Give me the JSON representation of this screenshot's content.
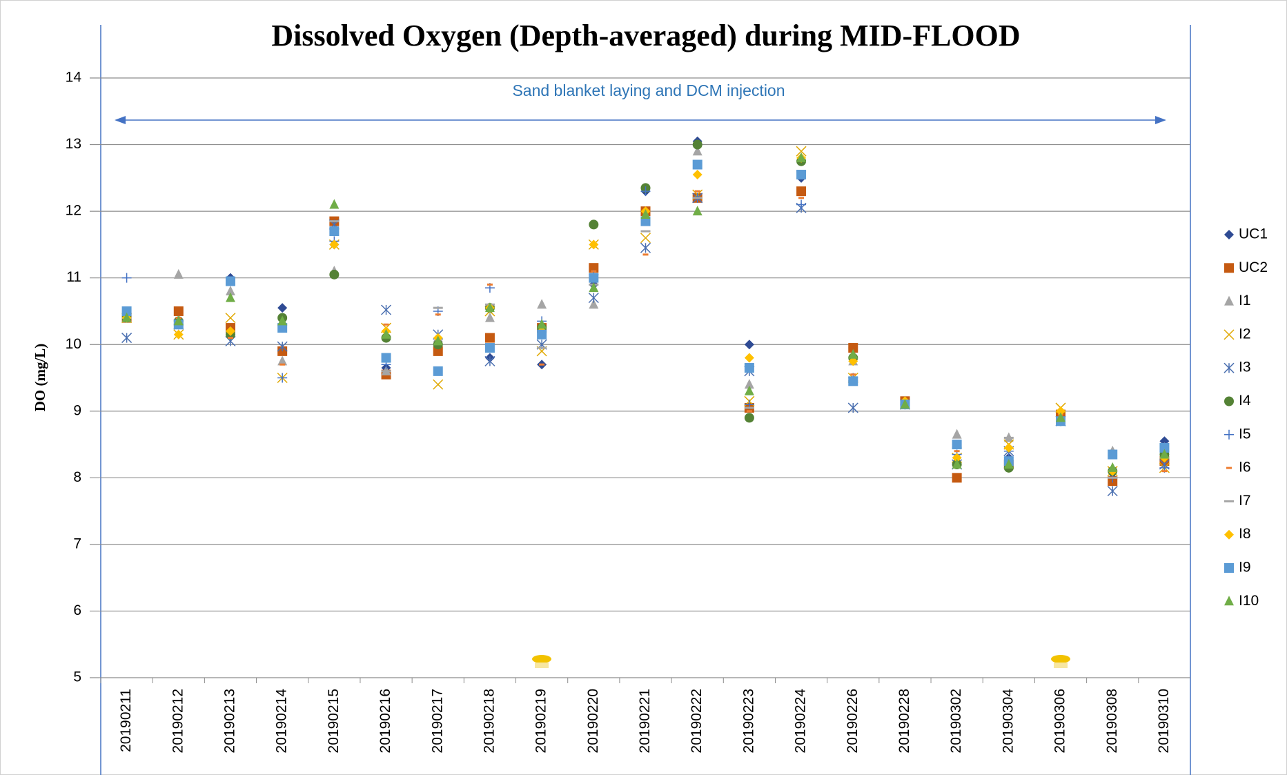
{
  "chart_data": {
    "type": "scatter",
    "title": "Dissolved Oxygen (Depth-averaged) during MID-FLOOD",
    "y_label": "DO (mg/L)",
    "annotation": "Sand blanket laying and DCM injection",
    "categories": [
      "20190211",
      "20190212",
      "20190213",
      "20190214",
      "20190215",
      "20190216",
      "20190217",
      "20190218",
      "20190219",
      "20190220",
      "20190221",
      "20190222",
      "20190223",
      "20190224",
      "20190226",
      "20190228",
      "20190302",
      "20190304",
      "20190306",
      "20190308",
      "20190310"
    ],
    "ylim": [
      5,
      14
    ],
    "yticks": [
      5,
      6,
      7,
      8,
      9,
      10,
      11,
      12,
      13,
      14
    ],
    "grid": true,
    "legend": "right",
    "series": [
      {
        "name": "UC1",
        "color": "#2f4b94",
        "marker": "diamond",
        "values": [
          10.4,
          10.3,
          11.0,
          10.55,
          11.5,
          9.65,
          10.0,
          9.8,
          9.7,
          10.9,
          12.3,
          13.05,
          10.0,
          12.5,
          9.95,
          9.15,
          8.5,
          8.3,
          8.9,
          8.0,
          8.55
        ]
      },
      {
        "name": "UC2",
        "color": "#c55a11",
        "marker": "square",
        "values": [
          10.4,
          10.5,
          10.25,
          9.9,
          11.85,
          9.55,
          9.9,
          10.1,
          10.25,
          11.15,
          12.0,
          12.2,
          9.05,
          12.3,
          9.95,
          9.15,
          8.0,
          8.2,
          8.95,
          7.95,
          8.25
        ]
      },
      {
        "name": "I1",
        "color": "#a5a5a5",
        "marker": "triangle",
        "values": [
          10.4,
          11.05,
          10.8,
          9.75,
          11.1,
          9.6,
          10.1,
          10.4,
          10.6,
          10.6,
          11.9,
          12.9,
          9.4,
          12.8,
          9.75,
          9.15,
          8.65,
          8.6,
          8.9,
          8.4,
          8.45
        ]
      },
      {
        "name": "I2",
        "color": "#e0a800",
        "marker": "x",
        "values": [
          10.4,
          10.15,
          10.4,
          9.5,
          11.5,
          10.25,
          9.4,
          10.5,
          9.9,
          11.5,
          11.6,
          12.25,
          9.15,
          12.9,
          9.5,
          9.1,
          8.3,
          8.5,
          9.05,
          8.1,
          8.15
        ]
      },
      {
        "name": "I3",
        "color": "#4a6fb0",
        "marker": "asterisk",
        "values": [
          10.1,
          10.3,
          10.05,
          9.97,
          11.8,
          10.52,
          10.15,
          9.75,
          10.0,
          10.7,
          11.45,
          12.2,
          9.6,
          12.05,
          9.05,
          9.1,
          8.2,
          8.4,
          8.85,
          7.8,
          8.2
        ]
      },
      {
        "name": "I4",
        "color": "#548235",
        "marker": "circle",
        "values": [
          10.4,
          10.35,
          10.15,
          10.4,
          11.05,
          10.1,
          10.0,
          10.55,
          10.25,
          11.8,
          12.35,
          13.0,
          8.9,
          12.75,
          9.8,
          9.1,
          8.2,
          8.15,
          8.85,
          8.1,
          8.35
        ]
      },
      {
        "name": "I5",
        "color": "#4472c4",
        "marker": "plus",
        "values": [
          11.0,
          10.3,
          10.2,
          9.5,
          11.55,
          9.7,
          10.5,
          10.85,
          10.35,
          11.05,
          12.3,
          12.2,
          9.1,
          12.1,
          9.5,
          9.1,
          8.35,
          8.4,
          8.9,
          8.0,
          8.15
        ]
      },
      {
        "name": "I6",
        "color": "#ed7d31",
        "marker": "dash",
        "values": [
          10.4,
          10.4,
          10.1,
          9.7,
          11.75,
          10.3,
          10.45,
          10.9,
          9.7,
          11.1,
          11.35,
          12.3,
          9.0,
          12.2,
          9.55,
          9.1,
          8.4,
          8.45,
          8.95,
          8.1,
          8.1
        ]
      },
      {
        "name": "I7",
        "color": "#a5a5a5",
        "marker": "longdash",
        "values": [
          10.4,
          10.3,
          10.9,
          10.3,
          11.85,
          9.6,
          10.55,
          10.6,
          9.95,
          10.9,
          11.7,
          12.2,
          9.05,
          12.6,
          9.45,
          9.1,
          8.45,
          8.6,
          8.9,
          8.0,
          8.3
        ]
      },
      {
        "name": "I8",
        "color": "#ffc000",
        "marker": "diamond",
        "values": [
          10.4,
          10.15,
          10.2,
          10.3,
          11.5,
          10.2,
          10.1,
          10.55,
          10.2,
          11.5,
          12.0,
          12.55,
          9.8,
          12.8,
          9.75,
          9.15,
          8.3,
          8.45,
          9.0,
          8.1,
          8.3
        ]
      },
      {
        "name": "I9",
        "color": "#5b9bd5",
        "marker": "square",
        "values": [
          10.5,
          10.3,
          10.95,
          10.25,
          11.7,
          9.8,
          9.6,
          9.95,
          10.15,
          11.0,
          11.85,
          12.7,
          9.65,
          12.55,
          9.45,
          9.1,
          8.5,
          8.25,
          8.85,
          8.35,
          8.45
        ]
      },
      {
        "name": "I10",
        "color": "#70ad47",
        "marker": "triangle",
        "values": [
          10.4,
          10.35,
          10.7,
          10.35,
          12.1,
          10.15,
          10.05,
          10.55,
          10.3,
          10.85,
          11.95,
          12.0,
          9.3,
          12.8,
          9.85,
          9.1,
          8.2,
          8.2,
          8.9,
          8.15,
          8.35
        ]
      }
    ]
  }
}
